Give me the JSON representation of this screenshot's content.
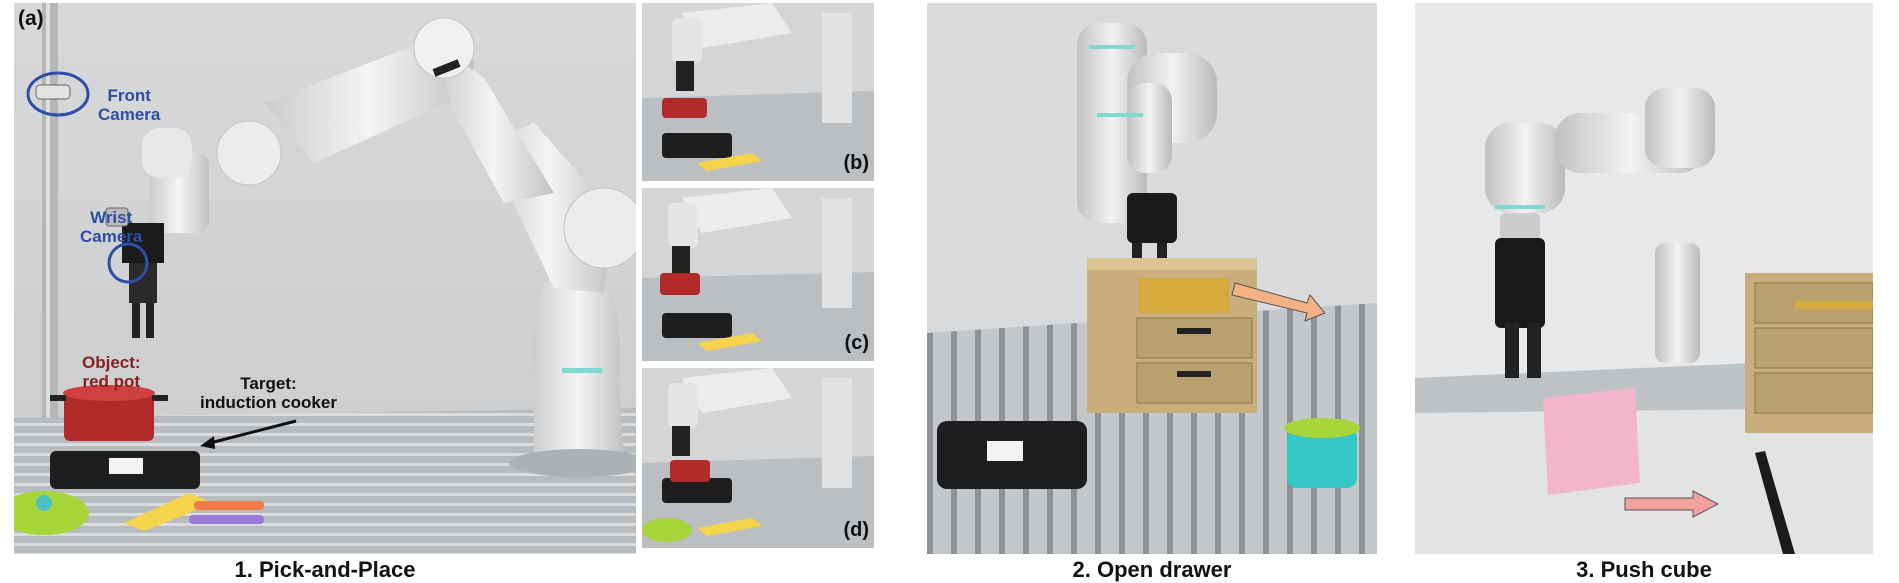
{
  "figure": {
    "panel_a": {
      "letter": "(a)",
      "front_camera_label": "Front\nCamera",
      "wrist_camera_label": "Wrist\nCamera",
      "object_label": "Object:\nred pot",
      "target_label": "Target:\ninduction cooker",
      "caption": "1. Pick-and-Place"
    },
    "panel_b": {
      "letter": "(b)"
    },
    "panel_c": {
      "letter": "(c)"
    },
    "panel_d": {
      "letter": "(d)"
    },
    "panel_drawer": {
      "caption": "2. Open drawer"
    },
    "panel_cube": {
      "caption": "3. Push cube"
    },
    "colors": {
      "callout_blue": "#2f4fa6",
      "callout_red": "#8b2020",
      "drawer_arrow": "#f4b183",
      "cube_arrow": "#f2a0a0"
    }
  }
}
